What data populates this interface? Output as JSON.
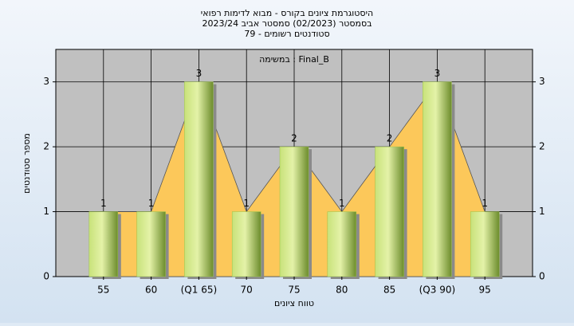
{
  "chart_data": {
    "type": "bar",
    "title": "היסטוגרמת ציונים בקורס - מבוא לדימות רפואי",
    "subtitle": "בסמסטר  (02/2023)  סמסטר אביב 2023/24",
    "subtitle2": "סטודנטים רשומים - 79",
    "annotation": "במשימה : Final_B",
    "x_label": "טווח ציונים",
    "y_label": "מספר סטודנטים",
    "categories": [
      "55",
      "60",
      "(Q1 65)",
      "70",
      "75",
      "80",
      "85",
      "(Q3 90)",
      "95"
    ],
    "values": [
      1,
      1,
      3,
      1,
      2,
      1,
      2,
      3,
      1
    ],
    "color": "#9cc449",
    "area_color": "#fcc85a",
    "ylim": [
      0,
      3.5
    ],
    "yticks": [
      0,
      1,
      2,
      3
    ],
    "grid": true
  }
}
